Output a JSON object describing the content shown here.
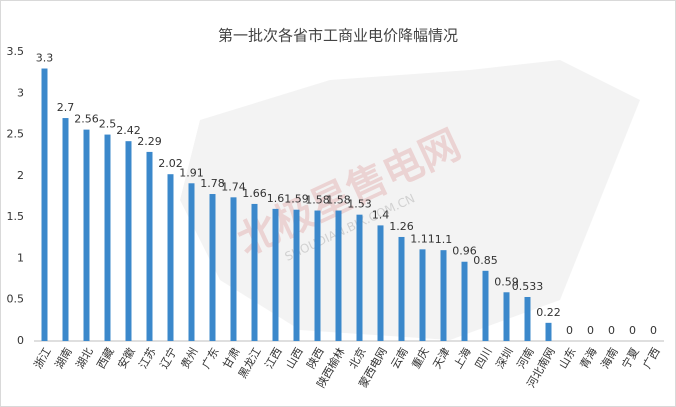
{
  "chart_data": {
    "type": "bar",
    "title": "第一批次各省市工商业电价降幅情况",
    "watermark": [
      "北极星售电网",
      "SHOUDIAN.BJX.COM.CN"
    ],
    "categories": [
      "浙江",
      "湖南",
      "湖北",
      "西藏",
      "安徽",
      "江苏",
      "辽宁",
      "贵州",
      "广东",
      "甘肃",
      "黑龙江",
      "江西",
      "山西",
      "陕西",
      "陕西榆林",
      "北京",
      "蒙西电网",
      "云南",
      "重庆",
      "天津",
      "上海",
      "四川",
      "深圳",
      "河南",
      "河北南网",
      "山东",
      "青海",
      "海南",
      "宁夏",
      "广西"
    ],
    "values": [
      3.3,
      2.7,
      2.56,
      2.5,
      2.42,
      2.29,
      2.02,
      1.91,
      1.78,
      1.74,
      1.66,
      1.6,
      1.59,
      1.58,
      1.58,
      1.53,
      1.4,
      1.26,
      1.11,
      1.1,
      0.96,
      0.85,
      0.59,
      0.533,
      0.22,
      0,
      0,
      0,
      0,
      0
    ],
    "color": "#3b88cb",
    "ylim": [
      0,
      3.5
    ],
    "yticks": [
      0,
      0.5,
      1,
      1.5,
      2,
      2.5,
      3,
      3.5
    ],
    "grid": false
  }
}
